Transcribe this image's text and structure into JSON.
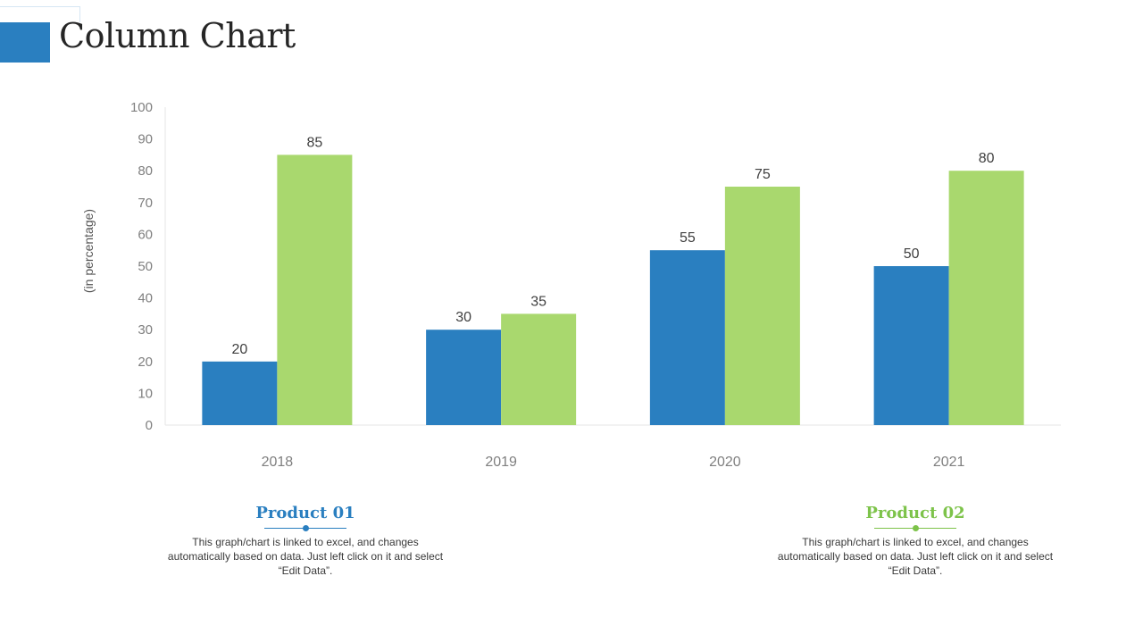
{
  "page": {
    "title": "Column Chart"
  },
  "theme": {
    "accent": "#2a7fc0",
    "series1_color": "#2a7fc0",
    "series2_color": "#a9d86e",
    "series1_label_color": "#2a7fc0",
    "series2_label_color": "#7dc34a"
  },
  "chart_data": {
    "type": "bar",
    "title": "",
    "xlabel": "",
    "ylabel": "(in percentage)",
    "categories": [
      "2018",
      "2019",
      "2020",
      "2021"
    ],
    "series": [
      {
        "name": "Product 01",
        "values": [
          20,
          30,
          55,
          50
        ]
      },
      {
        "name": "Product 02",
        "values": [
          85,
          35,
          75,
          80
        ]
      }
    ],
    "ylim": [
      0,
      100
    ],
    "yticks": [
      0,
      10,
      20,
      30,
      40,
      50,
      60,
      70,
      80,
      90,
      100
    ],
    "grid": false,
    "data_labels": true
  },
  "legend": {
    "items": [
      {
        "title": "Product 01",
        "description": "This graph/chart is linked to excel, and changes automatically based on data. Just left click on it and select “Edit Data”."
      },
      {
        "title": "Product 02",
        "description": "This graph/chart is linked to excel, and changes automatically based on data. Just left click on it and select “Edit Data”."
      }
    ]
  }
}
